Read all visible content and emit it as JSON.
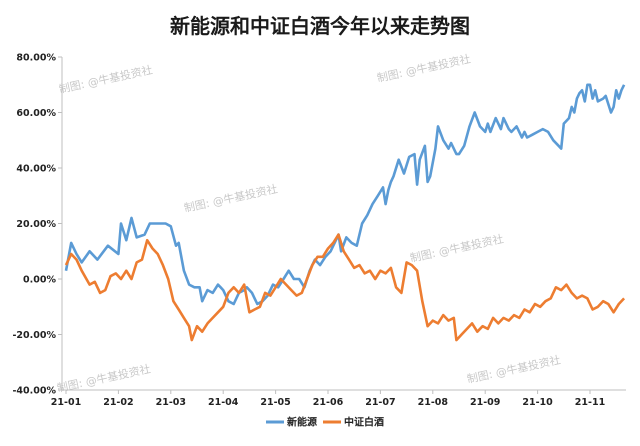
{
  "chart_data": {
    "type": "line",
    "title": "新能源和中证白酒今年以来走势图",
    "xlabel": "",
    "ylabel": "",
    "x_ticks": [
      "21-01",
      "21-02",
      "21-03",
      "21-04",
      "21-05",
      "21-06",
      "21-07",
      "21-08",
      "21-09",
      "21-10",
      "21-11"
    ],
    "y_ticks": [
      "80.00%",
      "60.00%",
      "40.00%",
      "20.00%",
      "0.00%",
      "-20.00%",
      "-40.00%"
    ],
    "ylim": [
      -40,
      80
    ],
    "grid": false,
    "legend_position": "bottom",
    "watermark": "制图: @牛基投资社",
    "series": [
      {
        "name": "新能源",
        "color": "#5b9bd5",
        "points": [
          [
            0,
            3
          ],
          [
            0.1,
            13
          ],
          [
            0.2,
            9
          ],
          [
            0.3,
            6
          ],
          [
            0.45,
            10
          ],
          [
            0.6,
            7
          ],
          [
            0.8,
            12
          ],
          [
            1.0,
            9
          ],
          [
            1.05,
            20
          ],
          [
            1.15,
            14
          ],
          [
            1.25,
            22
          ],
          [
            1.35,
            15
          ],
          [
            1.5,
            16
          ],
          [
            1.6,
            20
          ],
          [
            1.75,
            20
          ],
          [
            1.9,
            20
          ],
          [
            2.0,
            19
          ],
          [
            2.1,
            12
          ],
          [
            2.15,
            13
          ],
          [
            2.25,
            3
          ],
          [
            2.35,
            -2
          ],
          [
            2.45,
            -3
          ],
          [
            2.55,
            -3
          ],
          [
            2.6,
            -8
          ],
          [
            2.7,
            -4
          ],
          [
            2.8,
            -5
          ],
          [
            2.9,
            -2
          ],
          [
            2.95,
            -3
          ],
          [
            3.0,
            -4
          ],
          [
            3.1,
            -8
          ],
          [
            3.2,
            -9
          ],
          [
            3.3,
            -5
          ],
          [
            3.4,
            -4
          ],
          [
            3.45,
            -3
          ],
          [
            3.55,
            -5
          ],
          [
            3.65,
            -9
          ],
          [
            3.75,
            -8
          ],
          [
            3.85,
            -6
          ],
          [
            3.95,
            -2
          ],
          [
            4.05,
            -3
          ],
          [
            4.15,
            0
          ],
          [
            4.25,
            3
          ],
          [
            4.35,
            0
          ],
          [
            4.45,
            0
          ],
          [
            4.55,
            -3
          ],
          [
            4.65,
            3
          ],
          [
            4.75,
            7
          ],
          [
            4.85,
            5
          ],
          [
            4.95,
            8
          ],
          [
            5.05,
            10
          ],
          [
            5.15,
            14
          ],
          [
            5.2,
            16
          ],
          [
            5.25,
            10
          ],
          [
            5.35,
            15
          ],
          [
            5.45,
            13
          ],
          [
            5.55,
            12
          ],
          [
            5.65,
            20
          ],
          [
            5.75,
            23
          ],
          [
            5.85,
            27
          ],
          [
            5.95,
            30
          ],
          [
            6.05,
            33
          ],
          [
            6.1,
            27
          ],
          [
            6.15,
            32
          ],
          [
            6.2,
            35
          ],
          [
            6.25,
            37
          ],
          [
            6.35,
            43
          ],
          [
            6.45,
            38
          ],
          [
            6.55,
            44
          ],
          [
            6.65,
            45
          ],
          [
            6.7,
            34
          ],
          [
            6.75,
            43
          ],
          [
            6.85,
            48
          ],
          [
            6.9,
            35
          ],
          [
            6.95,
            37
          ],
          [
            7.05,
            47
          ],
          [
            7.1,
            55
          ],
          [
            7.2,
            50
          ],
          [
            7.3,
            47
          ],
          [
            7.35,
            49
          ],
          [
            7.45,
            45
          ],
          [
            7.5,
            45
          ],
          [
            7.6,
            48
          ],
          [
            7.7,
            55
          ],
          [
            7.8,
            60
          ],
          [
            7.9,
            55
          ],
          [
            8.0,
            53
          ],
          [
            8.05,
            56
          ],
          [
            8.1,
            53
          ],
          [
            8.2,
            58
          ],
          [
            8.3,
            54
          ],
          [
            8.35,
            58
          ],
          [
            8.45,
            54
          ],
          [
            8.5,
            53
          ],
          [
            8.6,
            55
          ],
          [
            8.7,
            51
          ],
          [
            8.75,
            53
          ],
          [
            8.8,
            51
          ],
          [
            8.9,
            52
          ],
          [
            9.0,
            53
          ],
          [
            9.1,
            54
          ],
          [
            9.2,
            53
          ],
          [
            9.3,
            50
          ],
          [
            9.4,
            48
          ],
          [
            9.45,
            47
          ],
          [
            9.5,
            56
          ],
          [
            9.6,
            58
          ],
          [
            9.65,
            62
          ],
          [
            9.7,
            60
          ],
          [
            9.75,
            65
          ],
          [
            9.8,
            67
          ],
          [
            9.85,
            68
          ],
          [
            9.9,
            64
          ],
          [
            9.95,
            70
          ],
          [
            10.0,
            70
          ],
          [
            10.05,
            65
          ],
          [
            10.1,
            68
          ],
          [
            10.15,
            64
          ],
          [
            10.25,
            65
          ],
          [
            10.3,
            66
          ],
          [
            10.4,
            60
          ],
          [
            10.45,
            62
          ],
          [
            10.5,
            68
          ],
          [
            10.55,
            65
          ],
          [
            10.6,
            68
          ],
          [
            10.65,
            70
          ]
        ]
      },
      {
        "name": "中证白酒",
        "color": "#ed7d31",
        "points": [
          [
            0,
            5
          ],
          [
            0.1,
            9
          ],
          [
            0.2,
            7
          ],
          [
            0.3,
            3
          ],
          [
            0.45,
            -2
          ],
          [
            0.55,
            -1
          ],
          [
            0.65,
            -5
          ],
          [
            0.75,
            -4
          ],
          [
            0.85,
            1
          ],
          [
            0.95,
            2
          ],
          [
            1.05,
            0
          ],
          [
            1.15,
            3
          ],
          [
            1.25,
            0
          ],
          [
            1.35,
            6
          ],
          [
            1.45,
            7
          ],
          [
            1.55,
            14
          ],
          [
            1.65,
            11
          ],
          [
            1.75,
            9
          ],
          [
            1.85,
            5
          ],
          [
            1.95,
            0
          ],
          [
            2.05,
            -8
          ],
          [
            2.15,
            -11
          ],
          [
            2.25,
            -14
          ],
          [
            2.35,
            -17
          ],
          [
            2.4,
            -22
          ],
          [
            2.5,
            -17
          ],
          [
            2.6,
            -19
          ],
          [
            2.7,
            -16
          ],
          [
            2.8,
            -14
          ],
          [
            2.9,
            -12
          ],
          [
            3.0,
            -10
          ],
          [
            3.1,
            -5
          ],
          [
            3.2,
            -3
          ],
          [
            3.3,
            -5
          ],
          [
            3.4,
            -2
          ],
          [
            3.5,
            -12
          ],
          [
            3.6,
            -11
          ],
          [
            3.7,
            -10
          ],
          [
            3.8,
            -5
          ],
          [
            3.9,
            -6
          ],
          [
            4.0,
            -3
          ],
          [
            4.1,
            0
          ],
          [
            4.2,
            -2
          ],
          [
            4.3,
            -4
          ],
          [
            4.4,
            -6
          ],
          [
            4.5,
            -5
          ],
          [
            4.6,
            0
          ],
          [
            4.7,
            5
          ],
          [
            4.8,
            8
          ],
          [
            4.9,
            8
          ],
          [
            5.0,
            11
          ],
          [
            5.1,
            13
          ],
          [
            5.2,
            16
          ],
          [
            5.3,
            10
          ],
          [
            5.4,
            7
          ],
          [
            5.5,
            4
          ],
          [
            5.6,
            5
          ],
          [
            5.7,
            2
          ],
          [
            5.8,
            3
          ],
          [
            5.9,
            0
          ],
          [
            6.0,
            3
          ],
          [
            6.1,
            2
          ],
          [
            6.2,
            4
          ],
          [
            6.3,
            -3
          ],
          [
            6.4,
            -5
          ],
          [
            6.5,
            6
          ],
          [
            6.6,
            5
          ],
          [
            6.7,
            3
          ],
          [
            6.8,
            -8
          ],
          [
            6.9,
            -17
          ],
          [
            7.0,
            -15
          ],
          [
            7.1,
            -16
          ],
          [
            7.2,
            -13
          ],
          [
            7.3,
            -15
          ],
          [
            7.4,
            -14
          ],
          [
            7.45,
            -22
          ],
          [
            7.55,
            -20
          ],
          [
            7.65,
            -18
          ],
          [
            7.75,
            -16
          ],
          [
            7.85,
            -19
          ],
          [
            7.95,
            -17
          ],
          [
            8.05,
            -18
          ],
          [
            8.15,
            -14
          ],
          [
            8.25,
            -16
          ],
          [
            8.35,
            -14
          ],
          [
            8.45,
            -15
          ],
          [
            8.55,
            -13
          ],
          [
            8.65,
            -14
          ],
          [
            8.75,
            -11
          ],
          [
            8.85,
            -12
          ],
          [
            8.95,
            -9
          ],
          [
            9.05,
            -10
          ],
          [
            9.15,
            -8
          ],
          [
            9.25,
            -7
          ],
          [
            9.35,
            -3
          ],
          [
            9.45,
            -4
          ],
          [
            9.55,
            -2
          ],
          [
            9.65,
            -5
          ],
          [
            9.75,
            -7
          ],
          [
            9.85,
            -6
          ],
          [
            9.95,
            -7
          ],
          [
            10.05,
            -11
          ],
          [
            10.15,
            -10
          ],
          [
            10.25,
            -8
          ],
          [
            10.35,
            -9
          ],
          [
            10.45,
            -12
          ],
          [
            10.55,
            -9
          ],
          [
            10.65,
            -7
          ]
        ]
      }
    ]
  }
}
